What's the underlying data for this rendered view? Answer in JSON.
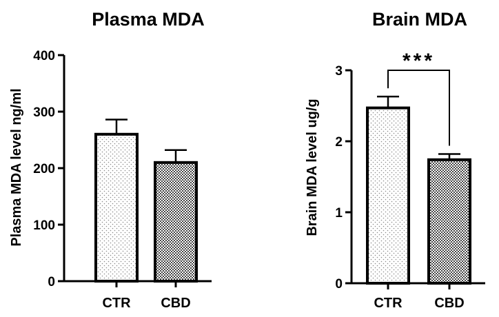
{
  "chart_data": [
    {
      "type": "bar",
      "title": "Plasma MDA",
      "ylabel": "Plasma MDA level ng/ml",
      "xlabel": "",
      "categories": [
        "CTR",
        "CBD"
      ],
      "values": [
        260,
        210
      ],
      "errors": [
        26,
        22
      ],
      "ylim": [
        0,
        400
      ],
      "yticks": [
        "0",
        "100",
        "200",
        "300",
        "400"
      ],
      "bar_patterns": [
        "sparse-dots",
        "dense-checker"
      ],
      "grid": false,
      "significance": null
    },
    {
      "type": "bar",
      "title": "Brain MDA",
      "ylabel": "Brain MDA level ug/g",
      "xlabel": "",
      "categories": [
        "CTR",
        "CBD"
      ],
      "values": [
        2.47,
        1.74
      ],
      "errors": [
        0.16,
        0.08
      ],
      "ylim": [
        0,
        3
      ],
      "yticks": [
        "0",
        "1",
        "2",
        "3"
      ],
      "bar_patterns": [
        "sparse-dots",
        "dense-checker"
      ],
      "grid": false,
      "significance": "***"
    }
  ]
}
